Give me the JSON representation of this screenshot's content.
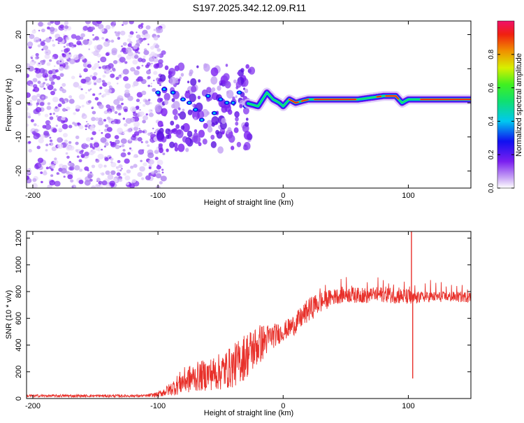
{
  "title": "S197.2025.342.12.09.R11",
  "chart_data": [
    {
      "type": "heatmap",
      "xlabel": "Height of straight line (km)",
      "ylabel": "Frequency (Hz)",
      "xlim": [
        -205,
        150
      ],
      "ylim": [
        -25,
        24
      ],
      "x_ticks": [
        -200,
        -100,
        0,
        100
      ],
      "y_ticks": [
        -20,
        -10,
        0,
        10,
        20
      ],
      "colorbar": {
        "label": "Normalized spectral amplitude",
        "range": [
          0,
          1
        ],
        "ticks": [
          "0.0",
          "0.2",
          "0.4",
          "0.6",
          "0.8"
        ],
        "tick_values": [
          0,
          0.2,
          0.4,
          0.6,
          0.8
        ]
      },
      "ridge": {
        "description_points_x": [
          -100,
          -80,
          -60,
          -40,
          -20,
          -13,
          -8,
          -3,
          0,
          5,
          10,
          20,
          40,
          60,
          80,
          90,
          95,
          100,
          110,
          150
        ],
        "frequency_hz": [
          4,
          1,
          0,
          1,
          -1,
          3,
          1,
          0,
          -1,
          1,
          0,
          1,
          1,
          1,
          2,
          2,
          0,
          1,
          1,
          1
        ]
      },
      "noise_region_x": [
        -205,
        -95
      ],
      "scatter_region_x": [
        -100,
        -25
      ]
    },
    {
      "type": "line",
      "xlabel": "Height of straight line (km)",
      "ylabel": "SNR (10 * v/v)",
      "xlim": [
        -205,
        150
      ],
      "ylim": [
        0,
        1250
      ],
      "x_ticks": [
        -200,
        -100,
        0,
        100
      ],
      "y_ticks": [
        0,
        200,
        400,
        600,
        800,
        1000,
        1200
      ],
      "series": [
        {
          "name": "SNR",
          "color": "#e8302a",
          "envelope_x": [
            -205,
            -110,
            -100,
            -90,
            -80,
            -70,
            -60,
            -50,
            -40,
            -30,
            -20,
            -10,
            0,
            10,
            20,
            30,
            40,
            50,
            60,
            70,
            80,
            90,
            100,
            103,
            110,
            120,
            130,
            140,
            150
          ],
          "envelope_mean": [
            20,
            20,
            30,
            70,
            130,
            160,
            180,
            200,
            240,
            320,
            400,
            460,
            500,
            560,
            660,
            720,
            760,
            780,
            770,
            770,
            780,
            770,
            760,
            740,
            760,
            760,
            760,
            760,
            760
          ],
          "envelope_spread": [
            10,
            10,
            20,
            50,
            100,
            110,
            120,
            140,
            160,
            180,
            160,
            100,
            70,
            80,
            90,
            80,
            60,
            60,
            60,
            60,
            60,
            60,
            60,
            60,
            40,
            40,
            40,
            40,
            40
          ],
          "spikes": [
            {
              "x": 102.5,
              "y": 1250
            },
            {
              "x": 103.5,
              "y": 150
            }
          ]
        }
      ]
    }
  ]
}
